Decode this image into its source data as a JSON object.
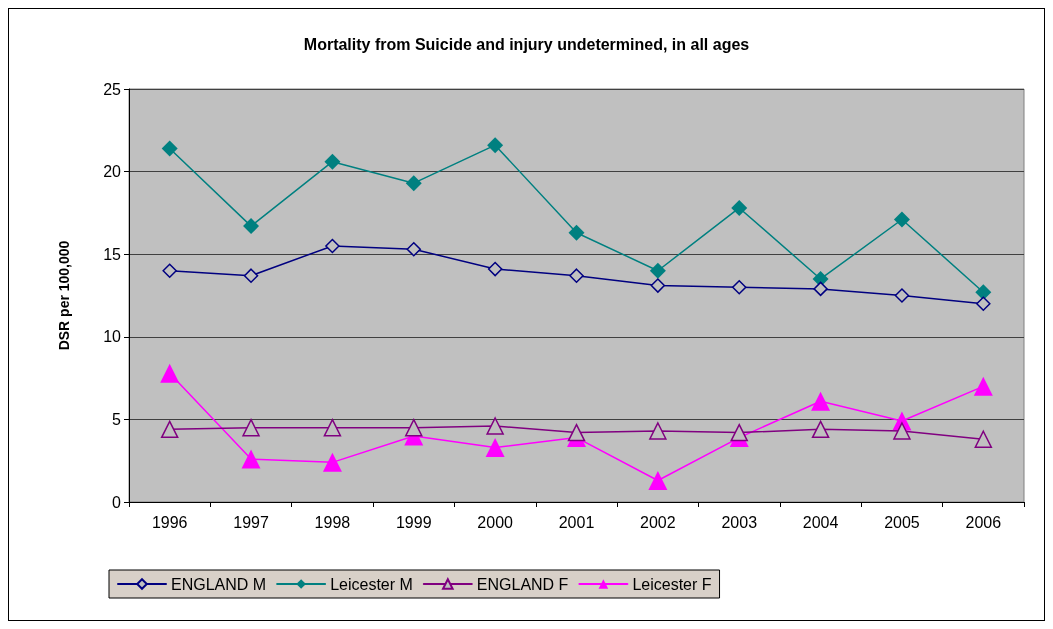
{
  "chart_data": {
    "type": "line",
    "title": "Mortality from Suicide and injury undetermined, in all ages",
    "ylabel": "DSR per 100,000",
    "categories": [
      "1996",
      "1997",
      "1998",
      "1999",
      "2000",
      "2001",
      "2002",
      "2003",
      "2004",
      "2005",
      "2006"
    ],
    "ylim": [
      0,
      25
    ],
    "yticks": [
      0,
      5,
      10,
      15,
      20,
      25
    ],
    "grid": "y",
    "legend": "bottom",
    "line_style": "solid",
    "series": [
      {
        "name": "ENGLAND M",
        "color": "#000080",
        "marker": "diamond",
        "values": [
          14.0,
          13.7,
          15.5,
          15.3,
          14.1,
          13.7,
          13.1,
          13.0,
          12.9,
          12.5,
          12.0
        ]
      },
      {
        "name": "Leicester M",
        "color": "#008080",
        "marker": "diamond",
        "values": [
          21.4,
          16.7,
          20.6,
          19.3,
          21.6,
          16.3,
          14.0,
          17.8,
          13.5,
          17.1,
          12.7
        ]
      },
      {
        "name": "ENGLAND F",
        "color": "#800080",
        "marker": "triangle",
        "values": [
          4.4,
          4.5,
          4.5,
          4.5,
          4.6,
          4.2,
          4.3,
          4.2,
          4.4,
          4.3,
          3.8
        ]
      },
      {
        "name": "Leicester F",
        "color": "#ff00ff",
        "marker": "triangle",
        "values": [
          7.8,
          2.6,
          2.4,
          4.0,
          3.3,
          3.9,
          1.3,
          3.9,
          6.1,
          4.9,
          7.0
        ]
      }
    ]
  }
}
